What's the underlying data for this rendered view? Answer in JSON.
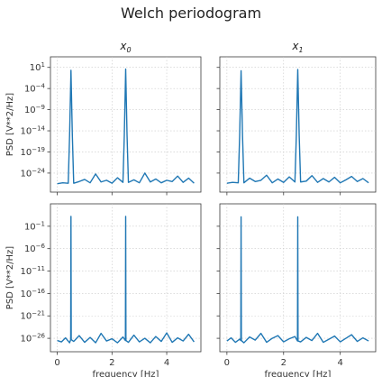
{
  "figure": {
    "title": "Welch periodogram"
  },
  "chart_data": [
    {
      "type": "line",
      "subplot": "top-left",
      "title": "x0",
      "title_base": "x",
      "title_sub": "0",
      "xlabel": "",
      "ylabel": "PSD [V**2/Hz]",
      "yscale": "log",
      "xlim": [
        -0.25,
        5.25
      ],
      "ylim_exp": [
        -28.5,
        3.5
      ],
      "xticks": [
        0,
        2,
        4
      ],
      "xticks_labeled": false,
      "yticks_exp": [
        1,
        -4,
        -9,
        -14,
        -19,
        -24
      ],
      "yticks_labeled": true,
      "grid": true,
      "series": [
        {
          "x": [
            0,
            0.2,
            0.4,
            0.45,
            0.5,
            0.55,
            0.6,
            0.8,
            1.0,
            1.2,
            1.4,
            1.6,
            1.8,
            2.0,
            2.2,
            2.4,
            2.45,
            2.5,
            2.55,
            2.6,
            2.8,
            3.0,
            3.2,
            3.4,
            3.6,
            3.8,
            4.0,
            4.2,
            4.4,
            4.6,
            4.8,
            5.0
          ],
          "log10_y": [
            -26.5,
            -26.3,
            -26.4,
            -15,
            0.3,
            -15,
            -26.4,
            -26.0,
            -25.5,
            -26.3,
            -24.2,
            -26.1,
            -25.7,
            -26.4,
            -25.1,
            -26.2,
            -15,
            0.6,
            -15,
            -26.2,
            -25.6,
            -26.3,
            -24.0,
            -26.1,
            -25.4,
            -26.3,
            -25.7,
            -26.0,
            -24.7,
            -26.2,
            -25.2,
            -26.4
          ]
        }
      ]
    },
    {
      "type": "line",
      "subplot": "top-right",
      "title": "x1",
      "title_base": "x",
      "title_sub": "1",
      "xlabel": "",
      "ylabel": "",
      "yscale": "log",
      "xlim": [
        -0.25,
        5.25
      ],
      "ylim_exp": [
        -28.5,
        3.5
      ],
      "xticks": [
        0,
        2,
        4
      ],
      "xticks_labeled": false,
      "yticks_exp": [
        1,
        -4,
        -9,
        -14,
        -19,
        -24
      ],
      "yticks_labeled": false,
      "grid": true,
      "series": [
        {
          "x": [
            0,
            0.2,
            0.4,
            0.45,
            0.5,
            0.55,
            0.6,
            0.8,
            1.0,
            1.2,
            1.4,
            1.6,
            1.8,
            2.0,
            2.2,
            2.4,
            2.45,
            2.5,
            2.55,
            2.6,
            2.8,
            3.0,
            3.2,
            3.4,
            3.6,
            3.8,
            4.0,
            4.2,
            4.4,
            4.6,
            4.8,
            5.0
          ],
          "log10_y": [
            -26.4,
            -26.2,
            -26.3,
            -15,
            0.2,
            -15,
            -26.3,
            -25.2,
            -26.0,
            -25.7,
            -24.5,
            -26.3,
            -25.4,
            -26.2,
            -24.9,
            -26.1,
            -15,
            0.5,
            -15,
            -26.1,
            -25.9,
            -24.6,
            -26.2,
            -25.3,
            -26.1,
            -25.0,
            -26.3,
            -25.6,
            -24.8,
            -26.0,
            -25.3,
            -26.3
          ]
        }
      ]
    },
    {
      "type": "line",
      "subplot": "bottom-left",
      "title": "",
      "xlabel": "frequency [Hz]",
      "ylabel": "PSD [V**2/Hz]",
      "yscale": "log",
      "xlim": [
        -0.25,
        5.25
      ],
      "ylim_exp": [
        -29,
        4
      ],
      "xticks": [
        0,
        2,
        4
      ],
      "xticks_labeled": true,
      "yticks_exp": [
        -1,
        -6,
        -11,
        -16,
        -21,
        -26
      ],
      "yticks_labeled": true,
      "grid": true,
      "series": [
        {
          "x": [
            0,
            0.15,
            0.3,
            0.45,
            0.49,
            0.5,
            0.51,
            0.6,
            0.8,
            1.0,
            1.2,
            1.4,
            1.6,
            1.8,
            2.0,
            2.2,
            2.4,
            2.49,
            2.5,
            2.51,
            2.6,
            2.8,
            3.0,
            3.2,
            3.4,
            3.6,
            3.8,
            4.0,
            4.2,
            4.4,
            4.6,
            4.8,
            5.0
          ],
          "log10_y": [
            -26.5,
            -26.8,
            -25.9,
            -27.0,
            -26.3,
            1.2,
            -26.3,
            -26.7,
            -25.4,
            -26.9,
            -25.8,
            -27.0,
            -24.9,
            -26.6,
            -26.1,
            -27.0,
            -25.7,
            -26.5,
            1.2,
            -26.5,
            -26.9,
            -25.3,
            -26.8,
            -26.0,
            -27.0,
            -25.6,
            -26.7,
            -24.8,
            -26.9,
            -25.9,
            -26.6,
            -25.1,
            -26.8
          ]
        }
      ]
    },
    {
      "type": "line",
      "subplot": "bottom-right",
      "title": "",
      "xlabel": "frequency [Hz]",
      "ylabel": "",
      "yscale": "log",
      "xlim": [
        -0.25,
        5.25
      ],
      "ylim_exp": [
        -29,
        4
      ],
      "xticks": [
        0,
        2,
        4
      ],
      "xticks_labeled": true,
      "yticks_exp": [
        -1,
        -6,
        -11,
        -16,
        -21,
        -26
      ],
      "yticks_labeled": false,
      "grid": true,
      "series": [
        {
          "x": [
            0,
            0.15,
            0.3,
            0.45,
            0.49,
            0.5,
            0.51,
            0.6,
            0.8,
            1.0,
            1.2,
            1.4,
            1.6,
            1.8,
            2.0,
            2.2,
            2.4,
            2.49,
            2.5,
            2.51,
            2.6,
            2.8,
            3.0,
            3.2,
            3.4,
            3.6,
            3.8,
            4.0,
            4.2,
            4.4,
            4.6,
            4.8,
            5.0
          ],
          "log10_y": [
            -26.6,
            -25.9,
            -26.9,
            -26.2,
            -26.5,
            1.1,
            -26.5,
            -27.0,
            -25.7,
            -26.4,
            -24.9,
            -26.9,
            -26.0,
            -25.4,
            -26.8,
            -26.1,
            -25.6,
            -26.6,
            1.1,
            -26.6,
            -26.8,
            -25.8,
            -26.5,
            -24.9,
            -26.9,
            -26.2,
            -25.5,
            -26.8,
            -26.0,
            -25.2,
            -26.7,
            -25.9,
            -26.6
          ]
        }
      ]
    }
  ],
  "colors": {
    "line": "#1f77b4",
    "grid": "#c8c8c8",
    "frame": "#3a3a3a"
  }
}
